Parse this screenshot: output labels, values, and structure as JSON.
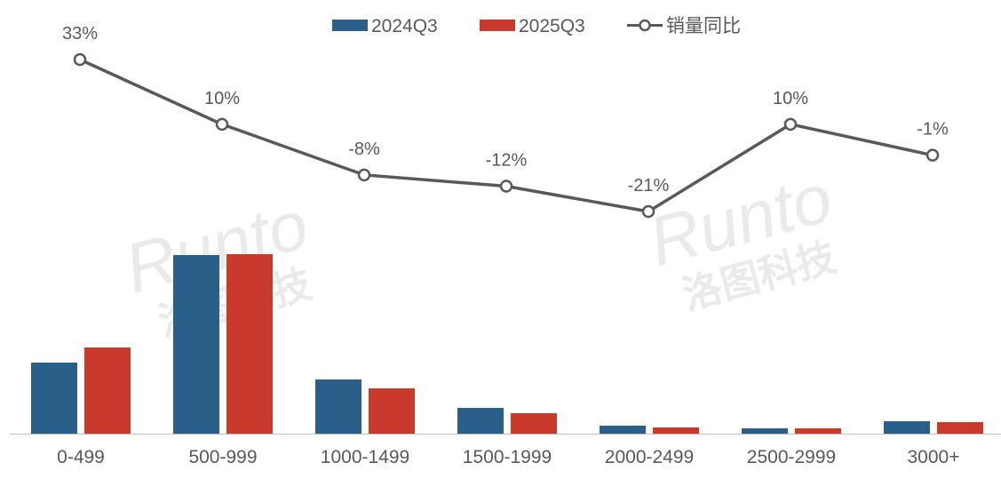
{
  "chart_data": {
    "type": "bar+line",
    "title": "",
    "categories": [
      "0-499",
      "500-999",
      "1000-1499",
      "1500-1999",
      "2000-2499",
      "2500-2999",
      "3000+"
    ],
    "series": [
      {
        "name": "2024Q3",
        "type": "bar",
        "color": "#2a5f8a",
        "values": [
          80,
          201,
          61,
          29,
          9,
          6,
          14
        ]
      },
      {
        "name": "2025Q3",
        "type": "bar",
        "color": "#c93a2a",
        "values": [
          97,
          202,
          51,
          23,
          7,
          6,
          13
        ]
      },
      {
        "name": "销量同比",
        "type": "line",
        "color": "#595959",
        "values": [
          33,
          10,
          -8,
          -12,
          -21,
          10,
          -1
        ],
        "labels": [
          "33%",
          "10%",
          "-8%",
          "-12%",
          "-21%",
          "10%",
          "-1%"
        ]
      }
    ],
    "bar_value_note": "relative heights, no axis shown",
    "bar_ylim": [
      0,
      220
    ],
    "line_ylim": [
      -25,
      40
    ],
    "legend_position": "top-center",
    "grid": false,
    "xlabel": "",
    "ylabel": ""
  },
  "watermark": {
    "text_en": "Runto",
    "text_cn": "洛图科技"
  }
}
